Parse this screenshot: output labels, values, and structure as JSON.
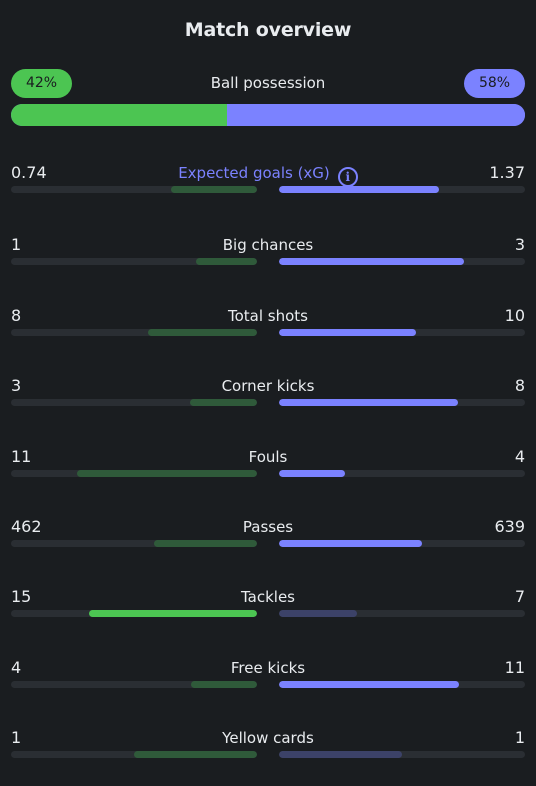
{
  "title": "Match overview",
  "possession": {
    "label": "Ball possession",
    "home_label": "42%",
    "away_label": "58%",
    "home": 42,
    "away": 58,
    "home_color": "#4cc552",
    "away_color": "#7b82ff"
  },
  "colors": {
    "home_strong": "#4cc552",
    "home_muted": "#2f5a3a",
    "away_strong": "#7b82ff",
    "away_muted": "#3c4268",
    "track": "#2a2e33"
  },
  "stats": [
    {
      "label": "Expected goals (xG)",
      "home": "0.74",
      "away": "1.37",
      "hv": 0.74,
      "av": 1.37,
      "info": true,
      "leader": "away"
    },
    {
      "label": "Big chances",
      "home": "1",
      "away": "3",
      "hv": 1,
      "av": 3,
      "leader": "away"
    },
    {
      "label": "Total shots",
      "home": "8",
      "away": "10",
      "hv": 8,
      "av": 10,
      "leader": "away"
    },
    {
      "label": "Corner kicks",
      "home": "3",
      "away": "8",
      "hv": 3,
      "av": 8,
      "leader": "away"
    },
    {
      "label": "Fouls",
      "home": "11",
      "away": "4",
      "hv": 11,
      "av": 4,
      "leader": "away"
    },
    {
      "label": "Passes",
      "home": "462",
      "away": "639",
      "hv": 462,
      "av": 639,
      "leader": "away"
    },
    {
      "label": "Tackles",
      "home": "15",
      "away": "7",
      "hv": 15,
      "av": 7,
      "leader": "home"
    },
    {
      "label": "Free kicks",
      "home": "4",
      "away": "11",
      "hv": 4,
      "av": 11,
      "leader": "away"
    },
    {
      "label": "Yellow cards",
      "home": "1",
      "away": "1",
      "hv": 1,
      "av": 1,
      "leader": "none"
    }
  ]
}
